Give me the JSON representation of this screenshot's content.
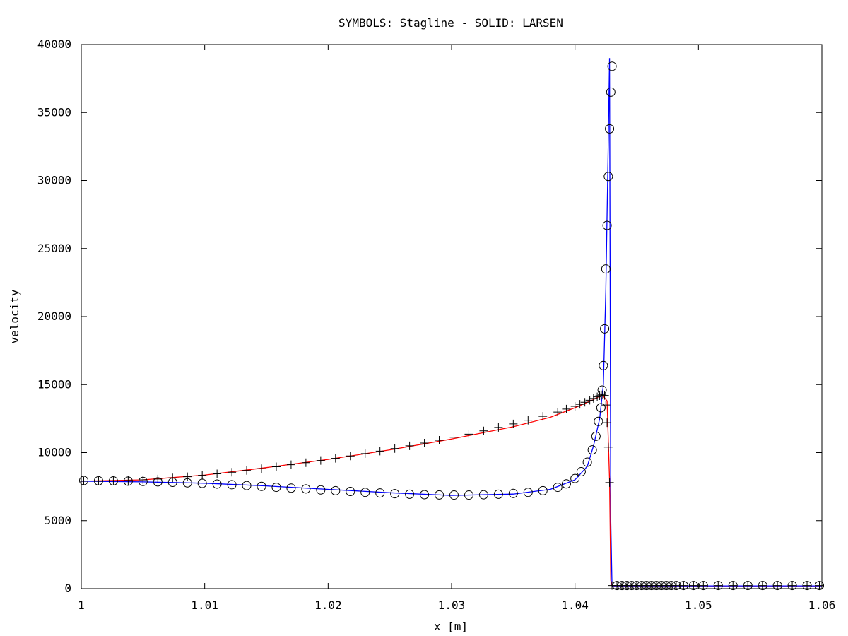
{
  "chart_data": {
    "type": "line",
    "title": "SYMBOLS: Stagline - SOLID: LARSEN",
    "xlabel": "x [m]",
    "ylabel": "velocity",
    "xlim": [
      1.0,
      1.06
    ],
    "ylim": [
      0,
      40000
    ],
    "grid": false,
    "x_ticks": [
      1.0,
      1.01,
      1.02,
      1.03,
      1.04,
      1.05,
      1.06
    ],
    "x_tick_labels": [
      "1",
      "1.01",
      "1.02",
      "1.03",
      "1.04",
      "1.05",
      "1.06"
    ],
    "y_ticks": [
      0,
      5000,
      10000,
      15000,
      20000,
      25000,
      30000,
      35000,
      40000
    ],
    "y_tick_labels": [
      "0",
      "5000",
      "10000",
      "15000",
      "20000",
      "25000",
      "30000",
      "35000",
      "40000"
    ],
    "series": [
      {
        "style": "solid",
        "color": "#ff0000",
        "x": [
          1.0,
          1.005,
          1.01,
          1.015,
          1.02,
          1.025,
          1.03,
          1.035,
          1.038,
          1.04,
          1.0415,
          1.0422,
          1.0426,
          1.0428,
          1.0429,
          1.043,
          1.048,
          1.055,
          1.06
        ],
        "y": [
          7900,
          8000,
          8350,
          8900,
          9500,
          10200,
          11000,
          11900,
          12600,
          13300,
          13900,
          14250,
          13800,
          8000,
          600,
          200,
          200,
          200,
          200
        ]
      },
      {
        "style": "solid",
        "color": "#0000ff",
        "x": [
          1.0,
          1.005,
          1.01,
          1.015,
          1.02,
          1.025,
          1.03,
          1.035,
          1.038,
          1.04,
          1.041,
          1.0415,
          1.042,
          1.0423,
          1.0425,
          1.0427,
          1.0428,
          1.0429,
          1.043,
          1.06
        ],
        "y": [
          7900,
          7850,
          7750,
          7550,
          7300,
          7050,
          6850,
          6950,
          7300,
          8000,
          9000,
          10500,
          12500,
          15000,
          22000,
          33000,
          39000,
          5000,
          200,
          200
        ]
      },
      {
        "style": "markers",
        "marker": "circle",
        "color": "#000000",
        "x": [
          1.0002,
          1.0014,
          1.0026,
          1.0038,
          1.005,
          1.0062,
          1.0074,
          1.0086,
          1.0098,
          1.011,
          1.0122,
          1.0134,
          1.0146,
          1.0158,
          1.017,
          1.0182,
          1.0194,
          1.0206,
          1.0218,
          1.023,
          1.0242,
          1.0254,
          1.0266,
          1.0278,
          1.029,
          1.0302,
          1.0314,
          1.0326,
          1.0338,
          1.035,
          1.0362,
          1.0374,
          1.0386,
          1.0393,
          1.04,
          1.0405,
          1.041,
          1.0414,
          1.0417,
          1.0419,
          1.0421,
          1.0422,
          1.0423,
          1.0424,
          1.0425,
          1.0426,
          1.0427,
          1.0428,
          1.0429,
          1.043,
          1.0434,
          1.0438,
          1.0442,
          1.0446,
          1.045,
          1.0454,
          1.0458,
          1.0462,
          1.0466,
          1.047,
          1.0474,
          1.0478,
          1.0482,
          1.0488,
          1.0496,
          1.0504,
          1.0516,
          1.0528,
          1.054,
          1.0552,
          1.0564,
          1.0576,
          1.0588,
          1.0598
        ],
        "y": [
          7950,
          7930,
          7920,
          7900,
          7880,
          7850,
          7820,
          7780,
          7740,
          7690,
          7640,
          7580,
          7520,
          7450,
          7390,
          7330,
          7260,
          7200,
          7140,
          7080,
          7030,
          6980,
          6940,
          6910,
          6890,
          6880,
          6880,
          6900,
          6940,
          7000,
          7080,
          7200,
          7450,
          7700,
          8100,
          8600,
          9300,
          10200,
          11200,
          12300,
          13300,
          14600,
          16400,
          19100,
          23500,
          26700,
          30300,
          33800,
          36500,
          38400,
          230,
          230,
          230,
          230,
          230,
          230,
          230,
          230,
          230,
          230,
          230,
          230,
          230,
          230,
          230,
          230,
          230,
          230,
          230,
          230,
          230,
          230,
          230,
          230
        ]
      },
      {
        "style": "markers",
        "marker": "plus",
        "color": "#000000",
        "x": [
          1.0002,
          1.0014,
          1.0026,
          1.0038,
          1.005,
          1.0062,
          1.0074,
          1.0086,
          1.0098,
          1.011,
          1.0122,
          1.0134,
          1.0146,
          1.0158,
          1.017,
          1.0182,
          1.0194,
          1.0206,
          1.0218,
          1.023,
          1.0242,
          1.0254,
          1.0266,
          1.0278,
          1.029,
          1.0302,
          1.0314,
          1.0326,
          1.0338,
          1.035,
          1.0362,
          1.0374,
          1.0386,
          1.0393,
          1.04,
          1.0404,
          1.0408,
          1.0412,
          1.0415,
          1.0418,
          1.042,
          1.0422,
          1.0424,
          1.0425,
          1.0426,
          1.0427,
          1.0428,
          1.043,
          1.0434,
          1.0438,
          1.0442,
          1.0446,
          1.045,
          1.0454,
          1.0458,
          1.0462,
          1.0466,
          1.047,
          1.0474,
          1.0478,
          1.0482,
          1.0488,
          1.0496,
          1.0504,
          1.0516,
          1.0528,
          1.054,
          1.0552,
          1.0564,
          1.0576,
          1.0588,
          1.0598
        ],
        "y": [
          7900,
          7900,
          7920,
          7950,
          8000,
          8060,
          8140,
          8230,
          8330,
          8440,
          8560,
          8690,
          8820,
          8960,
          9110,
          9260,
          9420,
          9580,
          9750,
          9930,
          10110,
          10300,
          10500,
          10700,
          10910,
          11130,
          11360,
          11600,
          11850,
          12110,
          12380,
          12670,
          12980,
          13200,
          13400,
          13550,
          13700,
          13850,
          13980,
          14100,
          14180,
          14250,
          14200,
          13500,
          12200,
          10400,
          7800,
          230,
          230,
          230,
          230,
          230,
          230,
          230,
          230,
          230,
          230,
          230,
          230,
          230,
          230,
          230,
          230,
          230,
          230,
          230,
          230,
          230,
          230,
          230,
          230,
          230
        ]
      }
    ]
  }
}
